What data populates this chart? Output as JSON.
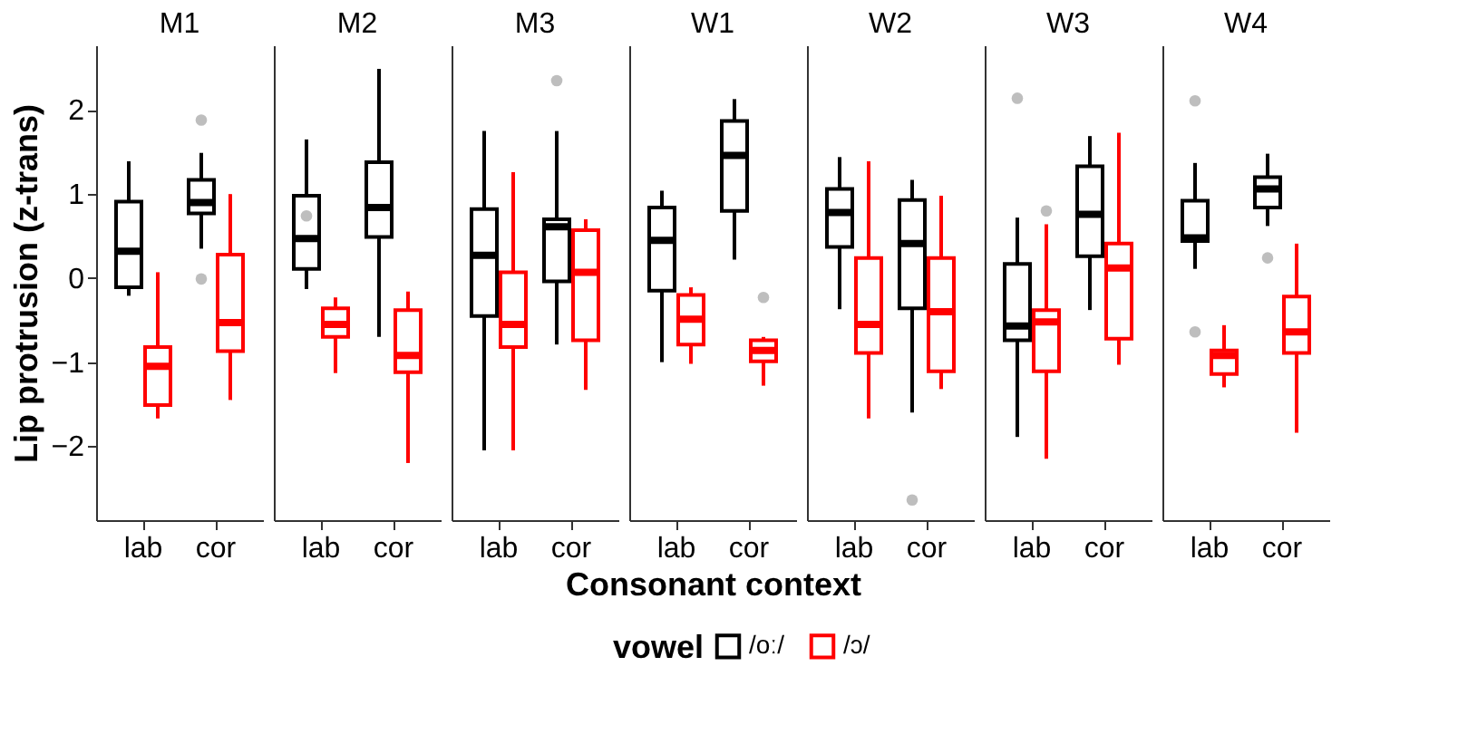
{
  "chart_data": [
    {
      "type": "box",
      "title": "M1",
      "ylabel": "Lip protrusion (z-trans)",
      "legend_title": "vowel",
      "legend": "bottom",
      "categories": [
        "lab",
        "cor"
      ],
      "ylim": [
        -2.88,
        2.77
      ],
      "yticks": [
        -2,
        -1,
        0,
        1,
        2
      ],
      "grid": false,
      "series": [
        {
          "name": "/oː/",
          "color": "#000000",
          "boxes": [
            {
              "low": -0.21,
              "q1": -0.11,
              "median": 0.32,
              "q3": 0.91,
              "high": 1.39
            },
            {
              "low": 0.35,
              "q1": 0.77,
              "median": 0.9,
              "q3": 1.17,
              "high": 1.49,
              "outliers": [
                1.88,
                -0.01
              ]
            }
          ]
        },
        {
          "name": "/ɔ/",
          "color": "#ff0000",
          "boxes": [
            {
              "low": -1.67,
              "q1": -1.51,
              "median": -1.05,
              "q3": -0.82,
              "high": 0.07
            },
            {
              "low": -1.45,
              "q1": -0.87,
              "median": -0.53,
              "q3": 0.28,
              "high": 1.0
            }
          ]
        }
      ]
    },
    {
      "type": "box",
      "title": "M2",
      "categories": [
        "lab",
        "cor"
      ],
      "ylim": [
        -2.88,
        2.77
      ],
      "tick_labels": "x",
      "grid": false,
      "series": [
        {
          "color": "#000000",
          "boxes": [
            {
              "low": -0.13,
              "q1": 0.11,
              "median": 0.47,
              "q3": 0.98,
              "high": 1.65,
              "outliers": [
                0.74
              ]
            },
            {
              "low": -0.7,
              "q1": 0.49,
              "median": 0.84,
              "q3": 1.38,
              "high": 2.49
            }
          ]
        },
        {
          "color": "#ff0000",
          "boxes": [
            {
              "low": -1.13,
              "q1": -0.7,
              "median": -0.55,
              "q3": -0.36,
              "high": -0.23
            },
            {
              "low": -2.2,
              "q1": -1.12,
              "median": -0.92,
              "q3": -0.38,
              "high": -0.16
            }
          ]
        }
      ]
    },
    {
      "type": "box",
      "title": "M3",
      "categories": [
        "lab",
        "cor"
      ],
      "ylim": [
        -2.88,
        2.77
      ],
      "tick_labels": "x",
      "grid": false,
      "series": [
        {
          "color": "#000000",
          "boxes": [
            {
              "low": -2.05,
              "q1": -0.45,
              "median": 0.27,
              "q3": 0.82,
              "high": 1.75
            },
            {
              "low": -0.79,
              "q1": -0.04,
              "median": 0.61,
              "q3": 0.7,
              "high": 1.75,
              "outliers": [
                2.35
              ]
            }
          ]
        },
        {
          "color": "#ff0000",
          "boxes": [
            {
              "low": -2.05,
              "q1": -0.82,
              "median": -0.55,
              "q3": 0.07,
              "high": 1.26
            },
            {
              "low": -1.33,
              "q1": -0.74,
              "median": 0.07,
              "q3": 0.57,
              "high": 0.7
            }
          ]
        }
      ]
    },
    {
      "type": "box",
      "title": "W1",
      "xlabel": "Consonant context",
      "categories": [
        "lab",
        "cor"
      ],
      "ylim": [
        -2.88,
        2.77
      ],
      "tick_labels": "x",
      "grid": false,
      "series": [
        {
          "color": "#000000",
          "boxes": [
            {
              "low": -1.0,
              "q1": -0.15,
              "median": 0.45,
              "q3": 0.84,
              "high": 1.04
            },
            {
              "low": 0.22,
              "q1": 0.8,
              "median": 1.46,
              "q3": 1.87,
              "high": 2.13
            }
          ]
        },
        {
          "color": "#ff0000",
          "boxes": [
            {
              "low": -1.02,
              "q1": -0.79,
              "median": -0.49,
              "q3": -0.2,
              "high": -0.11
            },
            {
              "low": -1.28,
              "q1": -0.99,
              "median": -0.86,
              "q3": -0.74,
              "high": -0.7,
              "outliers": [
                -0.23
              ]
            }
          ]
        }
      ]
    },
    {
      "type": "box",
      "title": "W2",
      "categories": [
        "lab",
        "cor"
      ],
      "ylim": [
        -2.88,
        2.77
      ],
      "tick_labels": "x",
      "grid": false,
      "series": [
        {
          "color": "#000000",
          "boxes": [
            {
              "low": -0.37,
              "q1": 0.37,
              "median": 0.78,
              "q3": 1.06,
              "high": 1.44
            },
            {
              "low": -1.6,
              "q1": -0.36,
              "median": 0.41,
              "q3": 0.93,
              "high": 1.17,
              "outliers": [
                -2.64
              ]
            }
          ]
        },
        {
          "color": "#ff0000",
          "boxes": [
            {
              "low": -1.67,
              "q1": -0.89,
              "median": -0.55,
              "q3": 0.24,
              "high": 1.39
            },
            {
              "low": -1.32,
              "q1": -1.11,
              "median": -0.4,
              "q3": 0.24,
              "high": 0.98
            }
          ]
        }
      ]
    },
    {
      "type": "box",
      "title": "W3",
      "categories": [
        "lab",
        "cor"
      ],
      "ylim": [
        -2.88,
        2.77
      ],
      "tick_labels": "x",
      "grid": false,
      "series": [
        {
          "color": "#000000",
          "boxes": [
            {
              "low": -1.89,
              "q1": -0.74,
              "median": -0.57,
              "q3": 0.17,
              "high": 0.72,
              "outliers": [
                2.14
              ]
            },
            {
              "low": -0.38,
              "q1": 0.26,
              "median": 0.76,
              "q3": 1.33,
              "high": 1.69
            }
          ]
        },
        {
          "color": "#ff0000",
          "boxes": [
            {
              "low": -2.15,
              "q1": -1.11,
              "median": -0.52,
              "q3": -0.38,
              "high": 0.64,
              "outliers": [
                0.8
              ]
            },
            {
              "low": -1.03,
              "q1": -0.72,
              "median": 0.12,
              "q3": 0.41,
              "high": 1.73
            }
          ]
        }
      ]
    },
    {
      "type": "box",
      "title": "W4",
      "categories": [
        "lab",
        "cor"
      ],
      "ylim": [
        -2.88,
        2.77
      ],
      "tick_labels": "x",
      "grid": false,
      "series": [
        {
          "color": "#000000",
          "boxes": [
            {
              "low": 0.11,
              "q1": 0.44,
              "median": 0.48,
              "q3": 0.92,
              "high": 1.37,
              "outliers": [
                2.11,
                -0.64
              ]
            },
            {
              "low": 0.62,
              "q1": 0.84,
              "median": 1.06,
              "q3": 1.2,
              "high": 1.48,
              "outliers": [
                0.24
              ]
            }
          ]
        },
        {
          "color": "#ff0000",
          "boxes": [
            {
              "low": -1.3,
              "q1": -1.14,
              "median": -0.92,
              "q3": -0.86,
              "high": -0.56
            },
            {
              "low": -1.84,
              "q1": -0.89,
              "median": -0.64,
              "q3": -0.22,
              "high": 0.41
            }
          ]
        }
      ]
    }
  ]
}
